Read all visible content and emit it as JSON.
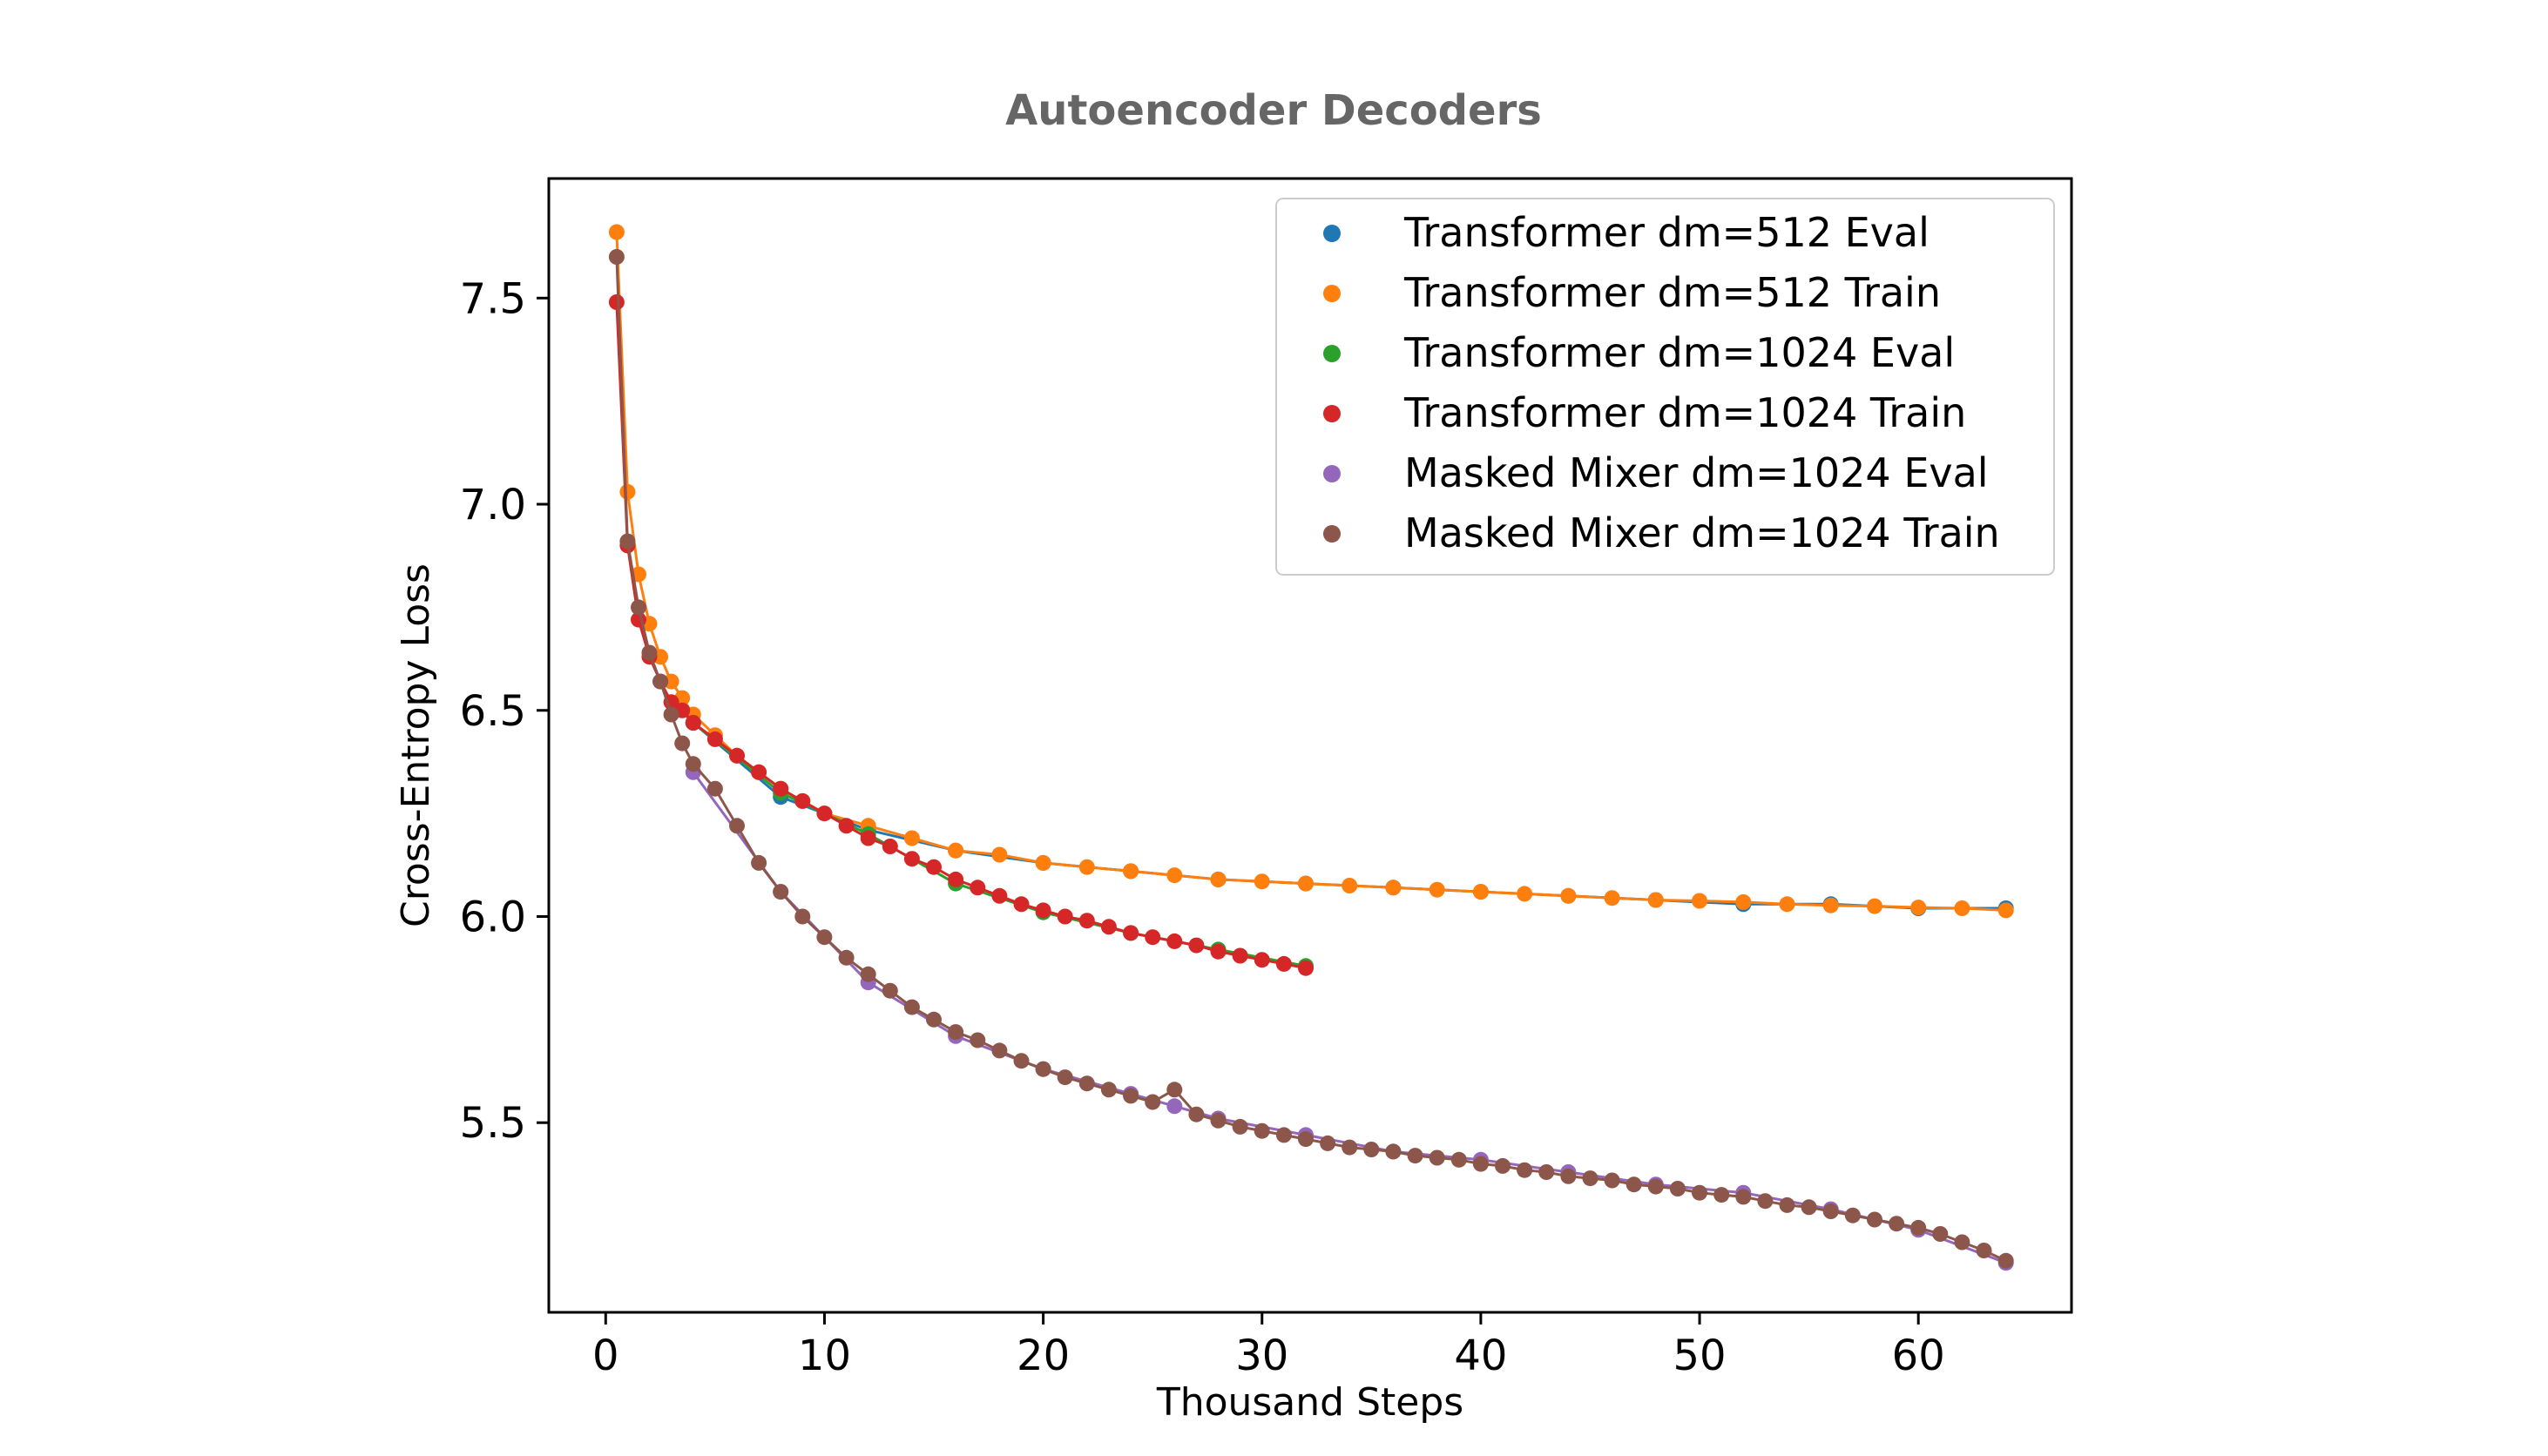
{
  "chart_data": {
    "type": "scatter",
    "title": "Autoencoder Decoders",
    "xlabel": "Thousand Steps",
    "ylabel": "Cross-Entropy Loss",
    "xlim": [
      -2.6,
      67.0
    ],
    "ylim": [
      5.04,
      7.79
    ],
    "xticks": [
      0,
      10,
      20,
      30,
      40,
      50,
      60
    ],
    "yticks": [
      5.5,
      6.0,
      6.5,
      7.0,
      7.5
    ],
    "grid": false,
    "legend_position": "top-right",
    "series": [
      {
        "name": "Transformer dm=512 Eval",
        "color": "#1f77b4",
        "points": [
          [
            4,
            6.47
          ],
          [
            8,
            6.29
          ],
          [
            12,
            6.21
          ],
          [
            16,
            6.16
          ],
          [
            20,
            6.13
          ],
          [
            24,
            6.11
          ],
          [
            28,
            6.09
          ],
          [
            32,
            6.08
          ],
          [
            36,
            6.07
          ],
          [
            40,
            6.06
          ],
          [
            44,
            6.05
          ],
          [
            48,
            6.04
          ],
          [
            52,
            6.03
          ],
          [
            56,
            6.03
          ],
          [
            60,
            6.02
          ],
          [
            64,
            6.02
          ]
        ]
      },
      {
        "name": "Transformer dm=512 Train",
        "color": "#ff7f0e",
        "points": [
          [
            0.5,
            7.66
          ],
          [
            1,
            7.03
          ],
          [
            1.5,
            6.83
          ],
          [
            2,
            6.71
          ],
          [
            2.5,
            6.63
          ],
          [
            3,
            6.57
          ],
          [
            3.5,
            6.53
          ],
          [
            4,
            6.49
          ],
          [
            5,
            6.44
          ],
          [
            6,
            6.39
          ],
          [
            7,
            6.35
          ],
          [
            8,
            6.31
          ],
          [
            9,
            6.28
          ],
          [
            10,
            6.25
          ],
          [
            12,
            6.22
          ],
          [
            14,
            6.19
          ],
          [
            16,
            6.16
          ],
          [
            18,
            6.15
          ],
          [
            20,
            6.13
          ],
          [
            22,
            6.12
          ],
          [
            24,
            6.11
          ],
          [
            26,
            6.1
          ],
          [
            28,
            6.09
          ],
          [
            30,
            6.085
          ],
          [
            32,
            6.08
          ],
          [
            34,
            6.075
          ],
          [
            36,
            6.07
          ],
          [
            38,
            6.065
          ],
          [
            40,
            6.06
          ],
          [
            42,
            6.055
          ],
          [
            44,
            6.05
          ],
          [
            46,
            6.045
          ],
          [
            48,
            6.04
          ],
          [
            50,
            6.038
          ],
          [
            52,
            6.035
          ],
          [
            54,
            6.03
          ],
          [
            56,
            6.027
          ],
          [
            58,
            6.025
          ],
          [
            60,
            6.022
          ],
          [
            62,
            6.02
          ],
          [
            64,
            6.015
          ]
        ]
      },
      {
        "name": "Transformer dm=1024 Eval",
        "color": "#2ca02c",
        "points": [
          [
            4,
            6.47
          ],
          [
            8,
            6.3
          ],
          [
            12,
            6.2
          ],
          [
            16,
            6.08
          ],
          [
            20,
            6.01
          ],
          [
            24,
            5.96
          ],
          [
            28,
            5.92
          ],
          [
            32,
            5.88
          ]
        ]
      },
      {
        "name": "Transformer dm=1024 Train",
        "color": "#d62728",
        "points": [
          [
            0.5,
            7.49
          ],
          [
            1,
            6.9
          ],
          [
            1.5,
            6.72
          ],
          [
            2,
            6.63
          ],
          [
            2.5,
            6.57
          ],
          [
            3,
            6.52
          ],
          [
            3.5,
            6.5
          ],
          [
            4,
            6.47
          ],
          [
            5,
            6.43
          ],
          [
            6,
            6.39
          ],
          [
            7,
            6.35
          ],
          [
            8,
            6.31
          ],
          [
            9,
            6.28
          ],
          [
            10,
            6.25
          ],
          [
            11,
            6.22
          ],
          [
            12,
            6.19
          ],
          [
            13,
            6.17
          ],
          [
            14,
            6.14
          ],
          [
            15,
            6.12
          ],
          [
            16,
            6.09
          ],
          [
            17,
            6.07
          ],
          [
            18,
            6.05
          ],
          [
            19,
            6.03
          ],
          [
            20,
            6.015
          ],
          [
            21,
            6.0
          ],
          [
            22,
            5.99
          ],
          [
            23,
            5.975
          ],
          [
            24,
            5.96
          ],
          [
            25,
            5.95
          ],
          [
            26,
            5.94
          ],
          [
            27,
            5.93
          ],
          [
            28,
            5.915
          ],
          [
            29,
            5.905
          ],
          [
            30,
            5.895
          ],
          [
            31,
            5.885
          ],
          [
            32,
            5.875
          ]
        ]
      },
      {
        "name": "Masked Mixer dm=1024 Eval",
        "color": "#9467bd",
        "points": [
          [
            4,
            6.35
          ],
          [
            8,
            6.06
          ],
          [
            12,
            5.84
          ],
          [
            16,
            5.71
          ],
          [
            20,
            5.63
          ],
          [
            24,
            5.57
          ],
          [
            26,
            5.54
          ],
          [
            28,
            5.51
          ],
          [
            32,
            5.47
          ],
          [
            36,
            5.43
          ],
          [
            40,
            5.41
          ],
          [
            44,
            5.38
          ],
          [
            48,
            5.35
          ],
          [
            52,
            5.33
          ],
          [
            56,
            5.29
          ],
          [
            60,
            5.24
          ],
          [
            64,
            5.16
          ]
        ]
      },
      {
        "name": "Masked Mixer dm=1024 Train",
        "color": "#8c564b",
        "points": [
          [
            0.5,
            7.6
          ],
          [
            1,
            6.91
          ],
          [
            1.5,
            6.75
          ],
          [
            2,
            6.64
          ],
          [
            2.5,
            6.57
          ],
          [
            3,
            6.49
          ],
          [
            3.5,
            6.42
          ],
          [
            4,
            6.37
          ],
          [
            5,
            6.31
          ],
          [
            6,
            6.22
          ],
          [
            7,
            6.13
          ],
          [
            8,
            6.06
          ],
          [
            9,
            6.0
          ],
          [
            10,
            5.95
          ],
          [
            11,
            5.9
          ],
          [
            12,
            5.86
          ],
          [
            13,
            5.82
          ],
          [
            14,
            5.78
          ],
          [
            15,
            5.75
          ],
          [
            16,
            5.72
          ],
          [
            17,
            5.7
          ],
          [
            18,
            5.675
          ],
          [
            19,
            5.65
          ],
          [
            20,
            5.63
          ],
          [
            21,
            5.61
          ],
          [
            22,
            5.595
          ],
          [
            23,
            5.58
          ],
          [
            24,
            5.565
          ],
          [
            25,
            5.55
          ],
          [
            26,
            5.58
          ],
          [
            27,
            5.52
          ],
          [
            28,
            5.505
          ],
          [
            29,
            5.49
          ],
          [
            30,
            5.48
          ],
          [
            31,
            5.47
          ],
          [
            32,
            5.46
          ],
          [
            33,
            5.45
          ],
          [
            34,
            5.44
          ],
          [
            35,
            5.435
          ],
          [
            36,
            5.43
          ],
          [
            37,
            5.42
          ],
          [
            38,
            5.415
          ],
          [
            39,
            5.41
          ],
          [
            40,
            5.4
          ],
          [
            41,
            5.395
          ],
          [
            42,
            5.385
          ],
          [
            43,
            5.38
          ],
          [
            44,
            5.37
          ],
          [
            45,
            5.365
          ],
          [
            46,
            5.36
          ],
          [
            47,
            5.35
          ],
          [
            48,
            5.345
          ],
          [
            49,
            5.34
          ],
          [
            50,
            5.33
          ],
          [
            51,
            5.325
          ],
          [
            52,
            5.32
          ],
          [
            53,
            5.31
          ],
          [
            54,
            5.3
          ],
          [
            55,
            5.295
          ],
          [
            56,
            5.285
          ],
          [
            57,
            5.275
          ],
          [
            58,
            5.265
          ],
          [
            59,
            5.255
          ],
          [
            60,
            5.245
          ],
          [
            61,
            5.23
          ],
          [
            62,
            5.21
          ],
          [
            63,
            5.19
          ],
          [
            64,
            5.165
          ]
        ]
      }
    ]
  }
}
